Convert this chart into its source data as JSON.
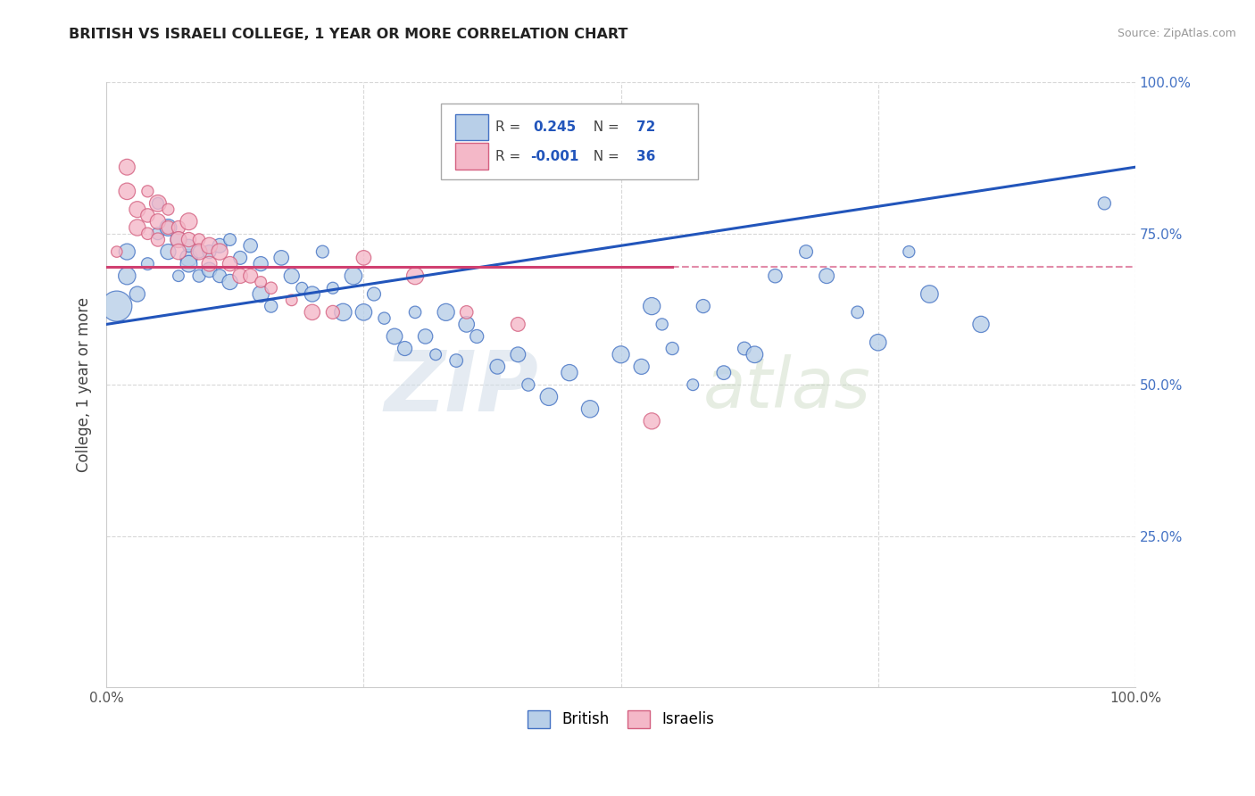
{
  "title": "BRITISH VS ISRAELI COLLEGE, 1 YEAR OR MORE CORRELATION CHART",
  "source": "Source: ZipAtlas.com",
  "ylabel": "College, 1 year or more",
  "xlim": [
    0,
    1.0
  ],
  "ylim": [
    0,
    1.0
  ],
  "british_R": 0.245,
  "british_N": 72,
  "israeli_R": -0.001,
  "israeli_N": 36,
  "blue_fill": "#b8cfe8",
  "blue_edge": "#4472c4",
  "pink_fill": "#f4b8c8",
  "pink_edge": "#d46080",
  "grid_color": "#d8d8d8",
  "brit_line_color": "#2255bb",
  "isr_line_color": "#d04070",
  "british_x": [
    0.01,
    0.02,
    0.02,
    0.03,
    0.04,
    0.05,
    0.05,
    0.06,
    0.06,
    0.07,
    0.07,
    0.08,
    0.08,
    0.08,
    0.09,
    0.09,
    0.1,
    0.1,
    0.11,
    0.11,
    0.12,
    0.12,
    0.13,
    0.14,
    0.15,
    0.15,
    0.16,
    0.17,
    0.18,
    0.19,
    0.2,
    0.21,
    0.22,
    0.23,
    0.24,
    0.25,
    0.26,
    0.27,
    0.28,
    0.29,
    0.3,
    0.31,
    0.32,
    0.33,
    0.34,
    0.35,
    0.36,
    0.38,
    0.4,
    0.41,
    0.43,
    0.45,
    0.47,
    0.5,
    0.52,
    0.53,
    0.54,
    0.55,
    0.57,
    0.58,
    0.6,
    0.62,
    0.63,
    0.65,
    0.68,
    0.7,
    0.73,
    0.75,
    0.78,
    0.8,
    0.85,
    0.97
  ],
  "british_y": [
    0.63,
    0.68,
    0.72,
    0.65,
    0.7,
    0.75,
    0.8,
    0.76,
    0.72,
    0.74,
    0.68,
    0.71,
    0.7,
    0.73,
    0.72,
    0.68,
    0.72,
    0.69,
    0.73,
    0.68,
    0.67,
    0.74,
    0.71,
    0.73,
    0.7,
    0.65,
    0.63,
    0.71,
    0.68,
    0.66,
    0.65,
    0.72,
    0.66,
    0.62,
    0.68,
    0.62,
    0.65,
    0.61,
    0.58,
    0.56,
    0.62,
    0.58,
    0.55,
    0.62,
    0.54,
    0.6,
    0.58,
    0.53,
    0.55,
    0.5,
    0.48,
    0.52,
    0.46,
    0.55,
    0.53,
    0.63,
    0.6,
    0.56,
    0.5,
    0.63,
    0.52,
    0.56,
    0.55,
    0.68,
    0.72,
    0.68,
    0.62,
    0.57,
    0.72,
    0.65,
    0.6,
    0.8
  ],
  "israeli_x": [
    0.01,
    0.02,
    0.02,
    0.03,
    0.03,
    0.04,
    0.04,
    0.04,
    0.05,
    0.05,
    0.05,
    0.06,
    0.06,
    0.07,
    0.07,
    0.07,
    0.08,
    0.08,
    0.09,
    0.09,
    0.1,
    0.1,
    0.11,
    0.12,
    0.13,
    0.14,
    0.15,
    0.16,
    0.18,
    0.2,
    0.22,
    0.25,
    0.3,
    0.35,
    0.4,
    0.53
  ],
  "israeli_y": [
    0.72,
    0.82,
    0.86,
    0.79,
    0.76,
    0.82,
    0.78,
    0.75,
    0.8,
    0.77,
    0.74,
    0.79,
    0.76,
    0.76,
    0.74,
    0.72,
    0.77,
    0.74,
    0.74,
    0.72,
    0.73,
    0.7,
    0.72,
    0.7,
    0.68,
    0.68,
    0.67,
    0.66,
    0.64,
    0.62,
    0.62,
    0.71,
    0.68,
    0.62,
    0.6,
    0.44
  ],
  "brit_line_x0": 0.0,
  "brit_line_y0": 0.6,
  "brit_line_x1": 1.0,
  "brit_line_y1": 0.86,
  "isr_line_x0": 0.0,
  "isr_line_y0": 0.695,
  "isr_line_x1": 0.55,
  "isr_line_y1": 0.695
}
